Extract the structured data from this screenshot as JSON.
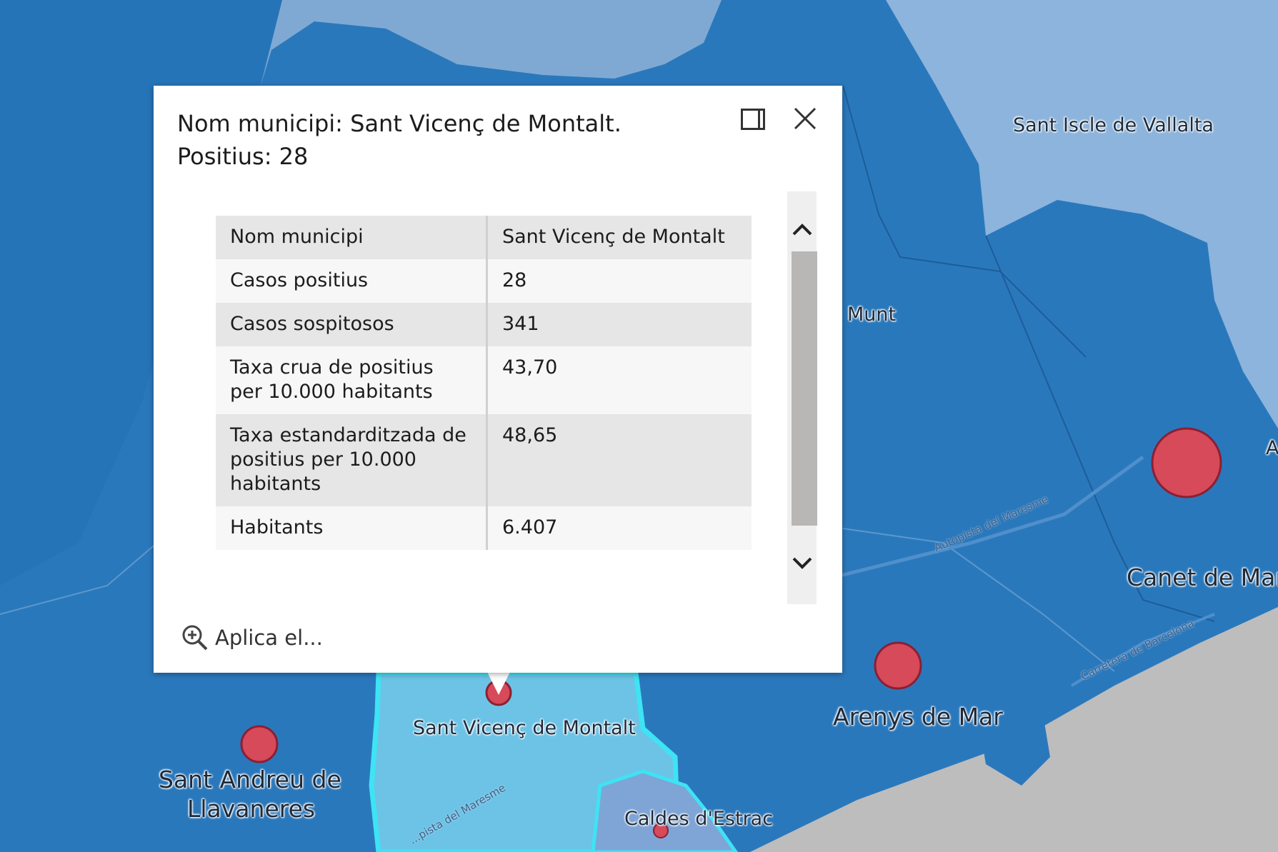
{
  "map": {
    "colors": {
      "water_dark": "#1f6fb3",
      "region_mid": "#2f7fc0",
      "region_light": "#7fa9d3",
      "region_pale": "#8cb4dc",
      "selected_fill": "#6dc3e6",
      "selected_outline": "#3ee3f4",
      "sea": "#bdbdbd",
      "marker_fill": "#d64a5a",
      "marker_stroke": "#8b1f33"
    },
    "labels": {
      "sant_iscle": "Sant Iscle de Vallalta",
      "munt": "Munt",
      "canet": "Canet de Mar",
      "arenys": "Arenys de Mar",
      "sant_vicenc": "Sant Vicenç de Montalt",
      "sant_andreu_line1": "Sant Andreu de",
      "sant_andreu_line2": "Llavaneres",
      "caldes": "Caldes d'Estrac",
      "autopista_1": "Autopista del Maresme",
      "autopista_2": "...pista del Maresme",
      "carretera": "Carretera de Barcelona",
      "edge_a": "A"
    }
  },
  "popup": {
    "title": "Nom municipi: Sant Vicenç de Montalt. Positius: 28",
    "dock_icon": "dock-panel-icon",
    "close_icon": "close-icon",
    "rows": [
      {
        "key": "Nom municipi",
        "value": "Sant Vicenç de Montalt"
      },
      {
        "key": "Casos positius",
        "value": "28"
      },
      {
        "key": "Casos sospitosos",
        "value": "341"
      },
      {
        "key": "Taxa crua de positius per 10.000 habitants",
        "value": "43,70"
      },
      {
        "key": "Taxa estandarditzada de positius per 10.000 habitants",
        "value": "48,65"
      },
      {
        "key": "Habitants",
        "value": "6.407"
      }
    ],
    "zoom_action": {
      "icon": "zoom-in-icon",
      "label": "Aplica el..."
    }
  }
}
